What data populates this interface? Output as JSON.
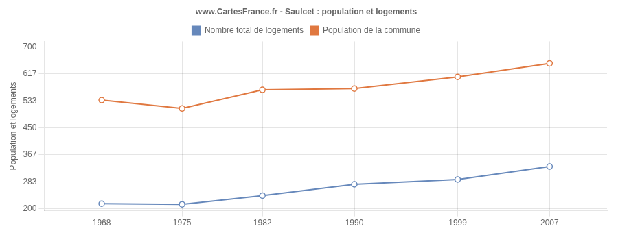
{
  "chart_data": {
    "type": "line",
    "title": "www.CartesFrance.fr - Saulcet : population et logements",
    "ylabel": "Population et logements",
    "x": [
      1968,
      1975,
      1982,
      1990,
      1999,
      2007
    ],
    "series": [
      {
        "name": "Population de la commune",
        "color": "#e07840",
        "values": [
          536,
          510,
          568,
          572,
          608,
          650
        ],
        "marker": "circle",
        "line_style": "solid"
      },
      {
        "name": "Nombre total de logements",
        "color": "#6688bb",
        "values": [
          215,
          213,
          240,
          275,
          290,
          330
        ],
        "marker": "circle",
        "line_style": "solid"
      }
    ],
    "xlim": [
      1963,
      2012
    ],
    "xticks": [
      1968,
      1975,
      1982,
      1990,
      1999,
      2007
    ],
    "ylim": [
      193,
      718
    ],
    "yticks": [
      200,
      283,
      367,
      450,
      533,
      617,
      700
    ],
    "grid": true,
    "legend": "top"
  }
}
